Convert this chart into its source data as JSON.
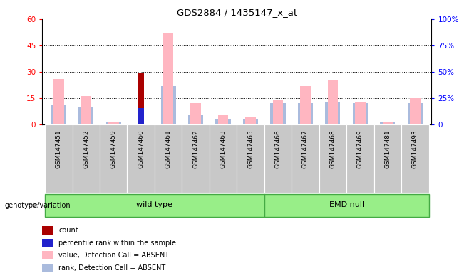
{
  "title": "GDS2884 / 1435147_x_at",
  "samples": [
    "GSM147451",
    "GSM147452",
    "GSM147459",
    "GSM147460",
    "GSM147461",
    "GSM147462",
    "GSM147463",
    "GSM147465",
    "GSM147466",
    "GSM147467",
    "GSM147468",
    "GSM147469",
    "GSM147481",
    "GSM147493"
  ],
  "wild_type_count": 8,
  "emd_null_count": 6,
  "count_values": [
    0,
    0,
    0,
    29.5,
    0,
    0,
    0,
    0,
    0,
    0,
    0,
    0,
    0,
    0
  ],
  "percentile_rank_values": [
    0,
    0,
    0,
    15.5,
    0,
    0,
    0,
    0,
    0,
    0,
    0,
    0,
    0,
    0
  ],
  "absent_value_values": [
    26,
    16,
    1.5,
    0,
    52,
    12,
    5,
    4,
    14,
    22,
    25,
    13,
    1,
    15
  ],
  "absent_rank_values": [
    11,
    10,
    1,
    0,
    22,
    5,
    3,
    3,
    12,
    12,
    13,
    12,
    1,
    12
  ],
  "left_ylim": [
    0,
    60
  ],
  "right_ylim": [
    0,
    100
  ],
  "left_yticks": [
    0,
    15,
    30,
    45,
    60
  ],
  "right_yticks": [
    0,
    25,
    50,
    75,
    100
  ],
  "right_yticklabels": [
    "0",
    "25%",
    "50%",
    "75%",
    "100%"
  ],
  "count_color": "#AA0000",
  "percentile_color": "#2222CC",
  "absent_value_color": "#FFB6C1",
  "absent_rank_color": "#AABBDD",
  "wild_type_label": "wild type",
  "emd_null_label": "EMD null",
  "genotype_label": "genotype/variation",
  "group_fill": "#98EE88",
  "group_edge": "#44AA44",
  "xtick_bg": "#C8C8C8",
  "legend_items": [
    "count",
    "percentile rank within the sample",
    "value, Detection Call = ABSENT",
    "rank, Detection Call = ABSENT"
  ],
  "legend_colors": [
    "#AA0000",
    "#2222CC",
    "#FFB6C1",
    "#AABBDD"
  ]
}
